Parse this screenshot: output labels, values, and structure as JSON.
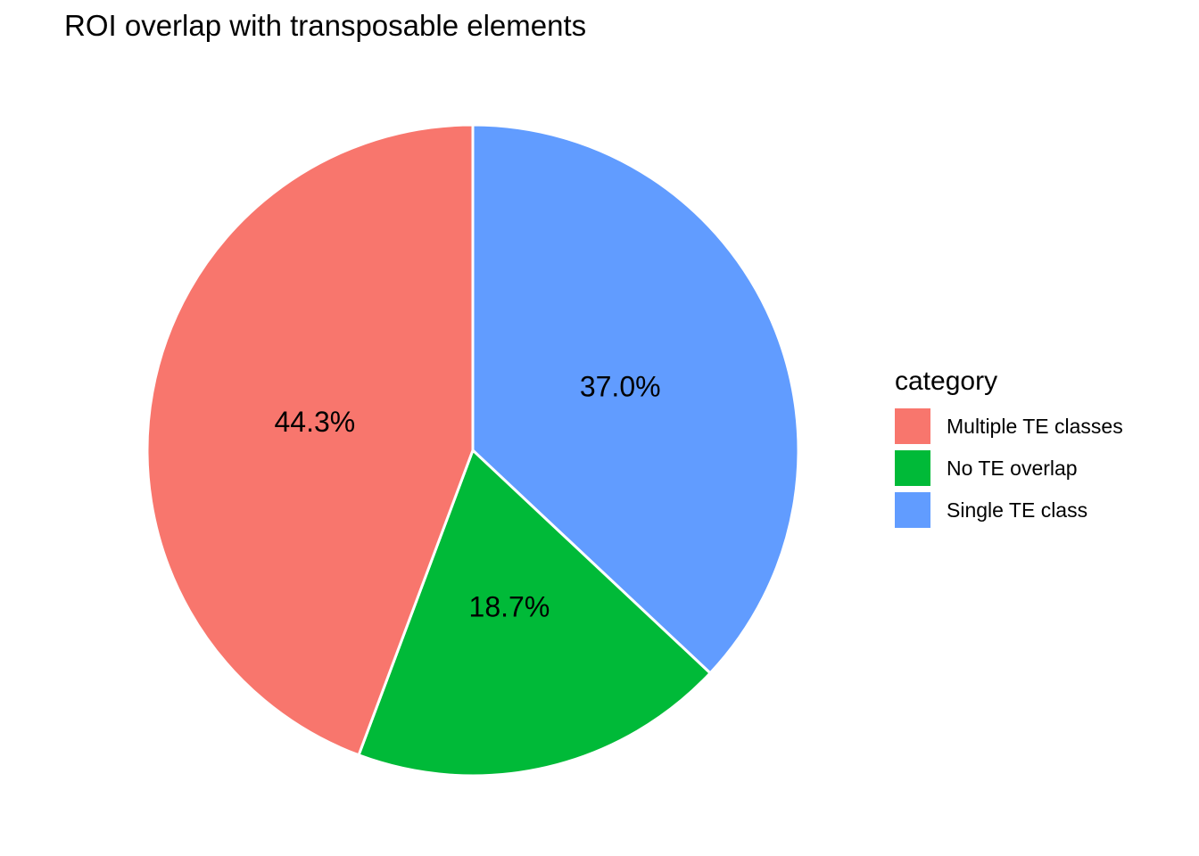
{
  "title": "ROI overlap with transposable elements",
  "chart_data": {
    "type": "pie",
    "title": "ROI overlap with transposable elements",
    "legend_title": "category",
    "legend_position": "right",
    "direction": "clockwise",
    "start_angle_deg": 0,
    "label_color": "#000000",
    "slice_border_color": "#FFFFFF",
    "background_color": "#FFFFFF",
    "slices": [
      {
        "category": "Single TE class",
        "percent": 37.0,
        "label": "37.0%",
        "color": "#619CFF"
      },
      {
        "category": "No TE overlap",
        "percent": 18.7,
        "label": "18.7%",
        "color": "#00BA38"
      },
      {
        "category": "Multiple TE classes",
        "percent": 44.3,
        "label": "44.3%",
        "color": "#F8766D"
      }
    ]
  },
  "legend": {
    "title": "category",
    "items": [
      {
        "label": "Multiple TE classes",
        "color": "#F8766D"
      },
      {
        "label": "No TE overlap",
        "color": "#00BA38"
      },
      {
        "label": "Single TE class",
        "color": "#619CFF"
      }
    ]
  }
}
